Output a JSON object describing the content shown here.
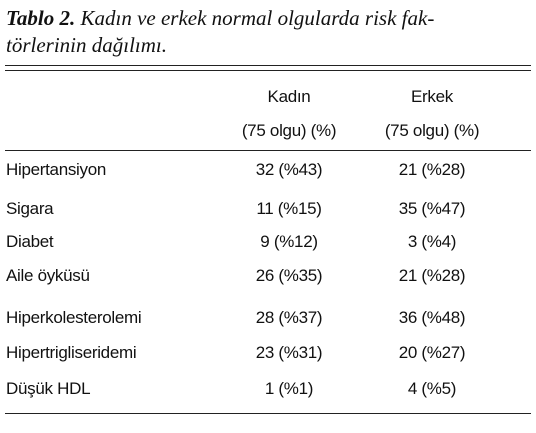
{
  "title": {
    "label": "Tablo 2.",
    "lines": [
      "Kadın ve erkek normal olgularda risk fak-",
      "törlerinin dağılımı."
    ]
  },
  "table": {
    "header": [
      [
        "Kadın",
        "(75 olgu) (%)"
      ],
      [
        "Erkek",
        "(75 olgu) (%)"
      ]
    ],
    "rows": [
      [
        "Hipertansiyon",
        "32 (%43)",
        "21 (%28)"
      ],
      [
        "Sigara",
        "11 (%15)",
        "35 (%47)"
      ],
      [
        "Diabet",
        "9 (%12)",
        "3 (%4)"
      ],
      [
        "Aile öyküsü",
        "26 (%35)",
        "21 (%28)"
      ],
      [
        "Hiperkolesterolemi",
        "28 (%37)",
        "36 (%48)"
      ],
      [
        "Hipertrigliseridemi",
        "23 (%31)",
        "20 (%27)"
      ],
      [
        "Düşük HDL",
        "1 (%1)",
        "4 (%5)"
      ]
    ]
  }
}
